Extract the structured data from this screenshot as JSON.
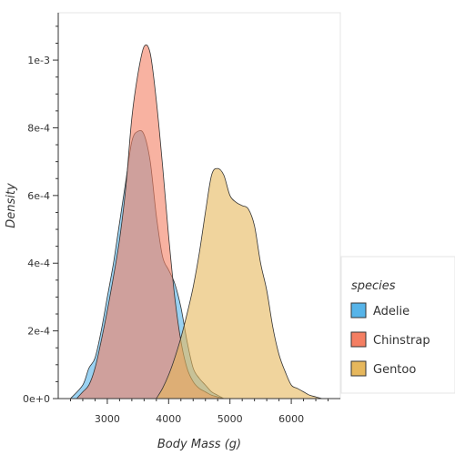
{
  "chart_data": {
    "type": "area",
    "title": "",
    "xlabel": "Body Mass (g)",
    "ylabel": "Density",
    "xlim": [
      2200,
      6800
    ],
    "ylim": [
      0,
      0.00114
    ],
    "x_ticks": [
      3000,
      4000,
      5000,
      6000
    ],
    "x_tick_labels": [
      "3000",
      "4000",
      "5000",
      "6000"
    ],
    "y_ticks": [
      0,
      0.0002,
      0.0004,
      0.0006,
      0.0008,
      0.001
    ],
    "y_tick_labels": [
      "0e+0",
      "2e-4",
      "4e-4",
      "6e-4",
      "8e-4",
      "1e-3"
    ],
    "grid": false,
    "legend": {
      "title": "species",
      "placement": "right"
    },
    "series": [
      {
        "name": "Adelie",
        "color": "#56b4e9",
        "x": [
          2400,
          2600,
          2700,
          2800,
          2900,
          3000,
          3100,
          3200,
          3300,
          3400,
          3500,
          3600,
          3700,
          3800,
          3900,
          4000,
          4100,
          4200,
          4300,
          4400,
          4500,
          4600,
          4700,
          4800,
          4900
        ],
        "y": [
          0,
          4e-05,
          9e-05,
          0.00012,
          0.0002,
          0.0003,
          0.0004,
          0.00052,
          0.00064,
          0.00076,
          0.00079,
          0.00078,
          0.0007,
          0.00054,
          0.00042,
          0.00038,
          0.00034,
          0.00027,
          0.00017,
          9e-05,
          6e-05,
          4e-05,
          2e-05,
          1e-05,
          0
        ]
      },
      {
        "name": "Chinstrap",
        "color": "#f47e62",
        "x": [
          2500,
          2600,
          2700,
          2800,
          2900,
          3000,
          3100,
          3200,
          3300,
          3400,
          3500,
          3600,
          3700,
          3800,
          3900,
          4000,
          4100,
          4200,
          4300,
          4400,
          4500,
          4600,
          4700,
          4800,
          4900
        ],
        "y": [
          0,
          2e-05,
          4e-05,
          9e-05,
          0.00017,
          0.00026,
          0.00036,
          0.00047,
          0.00062,
          0.00083,
          0.00096,
          0.00104,
          0.00102,
          0.00088,
          0.00069,
          0.00048,
          0.0003,
          0.00017,
          9e-05,
          5e-05,
          3e-05,
          2e-05,
          1e-05,
          5e-06,
          0
        ]
      },
      {
        "name": "Gentoo",
        "color": "#e6b75c",
        "x": [
          3800,
          3900,
          4000,
          4100,
          4200,
          4300,
          4400,
          4500,
          4600,
          4700,
          4800,
          4900,
          5000,
          5100,
          5200,
          5300,
          5400,
          5500,
          5600,
          5700,
          5800,
          5900,
          6000,
          6100,
          6200,
          6300,
          6400,
          6500
        ],
        "y": [
          0,
          3e-05,
          7e-05,
          0.00012,
          0.00018,
          0.00025,
          0.00033,
          0.00043,
          0.00055,
          0.00066,
          0.00068,
          0.00066,
          0.0006,
          0.00058,
          0.00057,
          0.00056,
          0.00051,
          0.0004,
          0.00032,
          0.00021,
          0.00013,
          8e-05,
          4e-05,
          3e-05,
          2e-05,
          1e-05,
          5e-06,
          0
        ]
      }
    ]
  }
}
